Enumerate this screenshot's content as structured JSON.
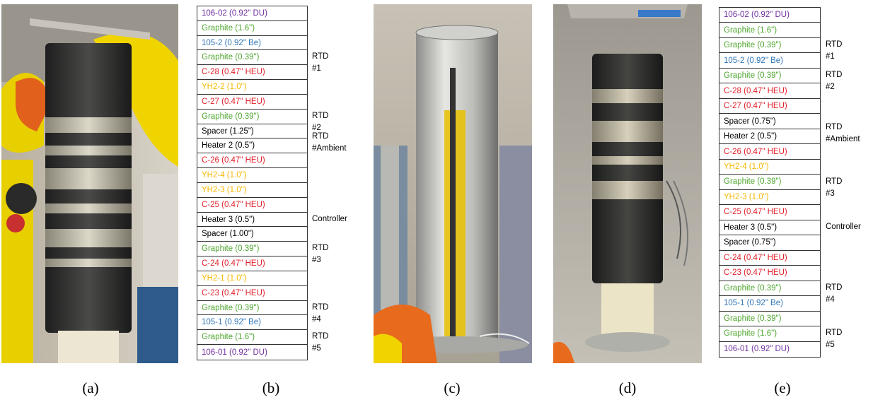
{
  "colors": {
    "du": "#7030a0",
    "graphite": "#4ea72e",
    "be": "#2e75b6",
    "heu": "#e3212b",
    "yh": "#f5b800",
    "plain": "#000000"
  },
  "panel_a": {
    "caption": "(a)",
    "photo": "stacked-cylinder-photo"
  },
  "panel_b": {
    "caption": "(b)",
    "rows": [
      {
        "text": "106-02 (0.92\" DU)",
        "color": "du"
      },
      {
        "text": "Graphite (1.6\")",
        "color": "graphite"
      },
      {
        "text": "105-2 (0.92\" Be)",
        "color": "be"
      },
      {
        "text": "Graphite (0.39\")",
        "color": "graphite"
      },
      {
        "text": "C-28 (0.47\" HEU)",
        "color": "heu"
      },
      {
        "text": "YH2-2 (1.0\")",
        "color": "yh"
      },
      {
        "text": "C-27 (0.47\" HEU)",
        "color": "heu"
      },
      {
        "text": "Graphite (0.39\")",
        "color": "graphite"
      },
      {
        "text": "Spacer (1.25\")",
        "color": "plain"
      },
      {
        "text": "Heater 2 (0.5\")",
        "color": "plain"
      },
      {
        "text": "C-26 (0.47\" HEU)",
        "color": "heu"
      },
      {
        "text": "YH2-4 (1.0\")",
        "color": "yh"
      },
      {
        "text": "YH2-3 (1.0\")",
        "color": "yh"
      },
      {
        "text": "C-25 (0.47\" HEU)",
        "color": "heu"
      },
      {
        "text": "Heater 3 (0.5\")",
        "color": "plain"
      },
      {
        "text": "Spacer (1.00\")",
        "color": "plain"
      },
      {
        "text": "Graphite (0.39\")",
        "color": "graphite"
      },
      {
        "text": "C-24 (0.47\" HEU)",
        "color": "heu"
      },
      {
        "text": "YH2-1 (1.0\")",
        "color": "yh"
      },
      {
        "text": "C-23 (0.47\" HEU)",
        "color": "heu"
      },
      {
        "text": "Graphite (0.39\")",
        "color": "graphite"
      },
      {
        "text": "105-1 (0.92\" Be)",
        "color": "be"
      },
      {
        "text": "Graphite (1.6\")",
        "color": "graphite"
      },
      {
        "text": "106-01 (0.92\" DU)",
        "color": "du"
      }
    ],
    "side_labels": [
      {
        "text": "RTD #1",
        "row": 3
      },
      {
        "text": "RTD #2",
        "row": 7
      },
      {
        "text": "RTD\n#Ambient",
        "row": 9
      },
      {
        "text": "Controller",
        "row": 14
      },
      {
        "text": "RTD #3",
        "row": 16
      },
      {
        "text": "RTD #4",
        "row": 20
      },
      {
        "text": "RTD #5",
        "row": 22
      }
    ]
  },
  "panel_c": {
    "caption": "(c)",
    "photo": "steel-canister-photo"
  },
  "panel_d": {
    "caption": "(d)",
    "photo": "stacked-cylinder-photo-2"
  },
  "panel_e": {
    "caption": "(e)",
    "rows": [
      {
        "text": "106-02 (0.92\" DU)",
        "color": "du"
      },
      {
        "text": "Graphite (1.6\")",
        "color": "graphite"
      },
      {
        "text": "Graphite (0.39\")",
        "color": "graphite"
      },
      {
        "text": "105-2 (0.92\" Be)",
        "color": "be"
      },
      {
        "text": "Graphite (0.39\")",
        "color": "graphite"
      },
      {
        "text": "C-28 (0.47\" HEU)",
        "color": "heu"
      },
      {
        "text": "C-27 (0.47\" HEU)",
        "color": "heu"
      },
      {
        "text": "Spacer (0.75\")",
        "color": "plain"
      },
      {
        "text": "Heater 2 (0.5\")",
        "color": "plain"
      },
      {
        "text": "C-26 (0.47\" HEU)",
        "color": "heu"
      },
      {
        "text": "YH2-4 (1.0\")",
        "color": "yh"
      },
      {
        "text": "Graphite (0.39\")",
        "color": "graphite"
      },
      {
        "text": "YH2-3 (1.0\")",
        "color": "yh"
      },
      {
        "text": "C-25 (0.47\" HEU)",
        "color": "heu"
      },
      {
        "text": "Heater 3 (0.5\")",
        "color": "plain"
      },
      {
        "text": "Spacer (0.75\")",
        "color": "plain"
      },
      {
        "text": "C-24 (0.47\" HEU)",
        "color": "heu"
      },
      {
        "text": "C-23 (0.47\" HEU)",
        "color": "heu"
      },
      {
        "text": "Graphite (0.39\")",
        "color": "graphite"
      },
      {
        "text": "105-1 (0.92\" Be)",
        "color": "be"
      },
      {
        "text": "Graphite (0.39\")",
        "color": "graphite"
      },
      {
        "text": "Graphite (1.6\")",
        "color": "graphite"
      },
      {
        "text": "106-01 (0.92\" DU)",
        "color": "du"
      }
    ],
    "side_labels": [
      {
        "text": "RTD #1",
        "row": 2
      },
      {
        "text": "RTD #2",
        "row": 4
      },
      {
        "text": "RTD\n#Ambient",
        "row": 8
      },
      {
        "text": "RTD #3",
        "row": 11
      },
      {
        "text": "Controller",
        "row": 14
      },
      {
        "text": "RTD #4",
        "row": 18
      },
      {
        "text": "RTD #5",
        "row": 21
      }
    ]
  }
}
